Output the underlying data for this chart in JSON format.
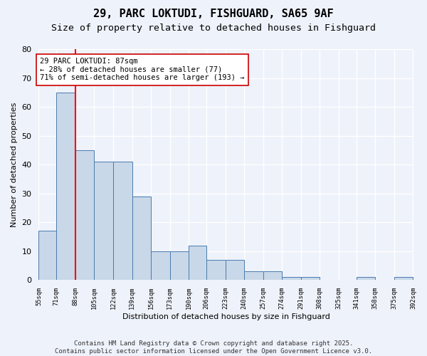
{
  "title": "29, PARC LOKTUDI, FISHGUARD, SA65 9AF",
  "subtitle": "Size of property relative to detached houses in Fishguard",
  "xlabel": "Distribution of detached houses by size in Fishguard",
  "ylabel": "Number of detached properties",
  "bar_values": [
    17,
    65,
    45,
    41,
    41,
    29,
    10,
    10,
    12,
    7,
    7,
    3,
    3,
    1,
    1,
    0,
    0,
    1,
    0,
    1
  ],
  "bin_edges": [
    55,
    71,
    88,
    105,
    122,
    139,
    156,
    173,
    190,
    206,
    223,
    240,
    257,
    274,
    291,
    308,
    325,
    341,
    358,
    375,
    392
  ],
  "tick_labels": [
    "55sqm",
    "71sqm",
    "88sqm",
    "105sqm",
    "122sqm",
    "139sqm",
    "156sqm",
    "173sqm",
    "190sqm",
    "206sqm",
    "223sqm",
    "240sqm",
    "257sqm",
    "274sqm",
    "291sqm",
    "308sqm",
    "325sqm",
    "341sqm",
    "358sqm",
    "375sqm",
    "392sqm"
  ],
  "bar_color": "#c8d8e8",
  "bar_edge_color": "#4a7aad",
  "red_line_x": 88,
  "annotation_text": "29 PARC LOKTUDI: 87sqm\n← 28% of detached houses are smaller (77)\n71% of semi-detached houses are larger (193) →",
  "annotation_box_color": "#ffffff",
  "annotation_box_edge": "#cc0000",
  "ylim": [
    0,
    80
  ],
  "yticks": [
    0,
    10,
    20,
    30,
    40,
    50,
    60,
    70,
    80
  ],
  "footer_text": "Contains HM Land Registry data © Crown copyright and database right 2025.\nContains public sector information licensed under the Open Government Licence v3.0.",
  "background_color": "#eef2fb",
  "grid_color": "#ffffff",
  "title_fontsize": 11,
  "subtitle_fontsize": 9.5,
  "annotation_fontsize": 7.5,
  "footer_fontsize": 6.5
}
